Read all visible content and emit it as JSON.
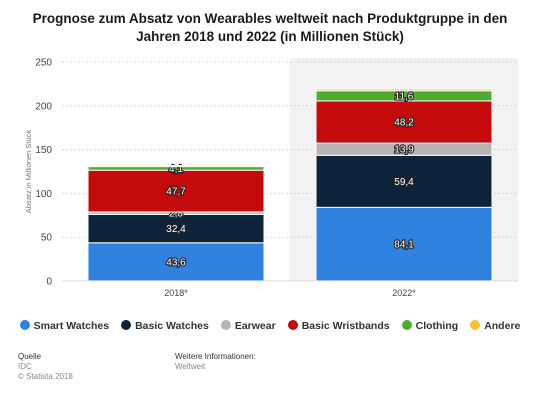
{
  "title": "Prognose zum Absatz von Wearables weltweit nach Produktgruppe in den Jahren 2018 und 2022 (in Millionen Stück)",
  "chart_data": {
    "type": "bar",
    "stacked": true,
    "categories": [
      "2018*",
      "2022*"
    ],
    "ylabel": "Absatz in Millionen Stück",
    "ylim": [
      0,
      250
    ],
    "yticks": [
      0,
      50,
      100,
      150,
      200,
      250
    ],
    "series": [
      {
        "name": "Smart Watches",
        "color": "#2f82e0",
        "values": [
          43.6,
          84.1
        ],
        "labels": [
          "43,6",
          "84,1"
        ]
      },
      {
        "name": "Basic Watches",
        "color": "#0d2339",
        "values": [
          32.4,
          59.4
        ],
        "labels": [
          "32,4",
          "59,4"
        ]
      },
      {
        "name": "Earwear",
        "color": "#b5b5b5",
        "values": [
          2.8,
          13.9
        ],
        "labels": [
          "2,8",
          "13,9"
        ]
      },
      {
        "name": "Basic Wristbands",
        "color": "#c40a0a",
        "values": [
          47.7,
          48.2
        ],
        "labels": [
          "47,7",
          "48,2"
        ]
      },
      {
        "name": "Clothing",
        "color": "#4fad2e",
        "values": [
          4.1,
          11.6
        ],
        "labels": [
          "4,1",
          "11,6"
        ]
      },
      {
        "name": "Andere",
        "color": "#f5c22b",
        "values": [
          1.3,
          2.0
        ],
        "labels": [
          "",
          ""
        ]
      }
    ]
  },
  "footer": {
    "source_label": "Quelle",
    "source_value": "IDC",
    "copyright": "© Statista 2018",
    "info_label": "Weitere Informationen:",
    "info_value": "Weltweit"
  }
}
